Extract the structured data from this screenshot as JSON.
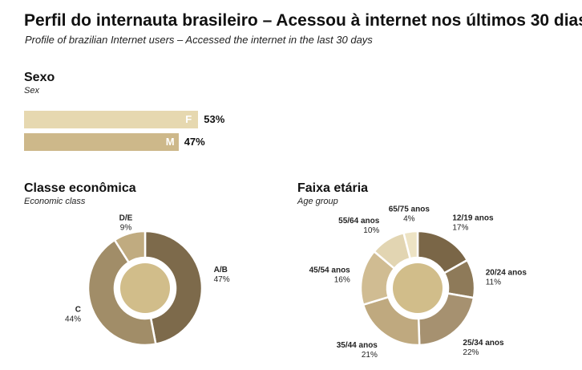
{
  "title": "Perfil do internauta brasileiro – Acessou à internet nos últimos 30 dias",
  "subtitle": "Profile of brazilian Internet users – Accessed the internet in the last 30 days",
  "colors": {
    "bar_F": "#e6d8b0",
    "bar_M": "#cdb88a",
    "center": "#d1bd8a",
    "gap": "#ffffff"
  },
  "chart_data": [
    {
      "type": "bar",
      "title": "Sexo",
      "subtitle": "Sex",
      "orientation": "horizontal",
      "categories": [
        "F",
        "M"
      ],
      "values": [
        53,
        47
      ],
      "value_labels": [
        "53%",
        "47%"
      ]
    },
    {
      "type": "pie",
      "title": "Classe econômica",
      "subtitle": "Economic class",
      "categories": [
        "A/B",
        "C",
        "D/E"
      ],
      "values": [
        47,
        44,
        9
      ],
      "value_labels": [
        "47%",
        "44%",
        "9%"
      ],
      "colors": [
        "#7d6a4b",
        "#a18d68",
        "#c0ab80"
      ]
    },
    {
      "type": "pie",
      "title": "Faixa etária",
      "subtitle": "Age group",
      "categories": [
        "12/19 anos",
        "20/24 anos",
        "25/34 anos",
        "35/44 anos",
        "45/54 anos",
        "55/64 anos",
        "65/75 anos"
      ],
      "values": [
        17,
        11,
        22,
        21,
        16,
        10,
        4
      ],
      "value_labels": [
        "17%",
        "11%",
        "22%",
        "21%",
        "16%",
        "10%",
        "4%"
      ],
      "colors": [
        "#7a6647",
        "#8e7a59",
        "#a69170",
        "#bfa97f",
        "#d0bc92",
        "#e2d5b2",
        "#ede3c4"
      ]
    }
  ]
}
